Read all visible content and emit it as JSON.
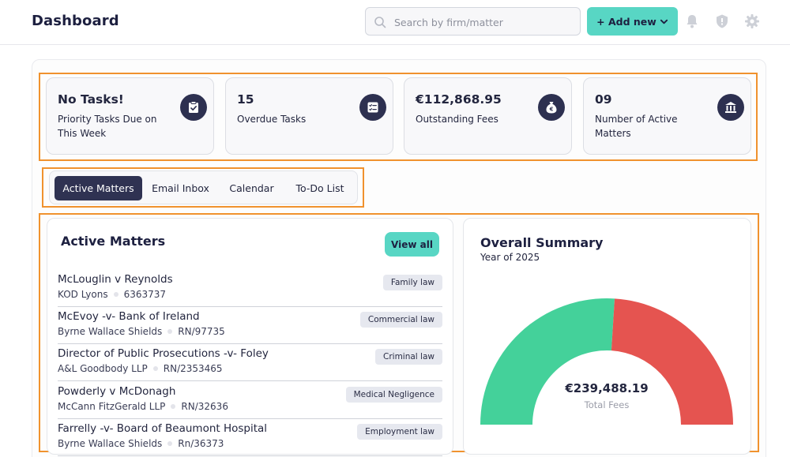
{
  "header": {
    "title": "Dashboard",
    "search_placeholder": "Search by firm/matter",
    "add_new_label": "+ Add new",
    "icons": [
      "search-icon",
      "chevron-down-icon",
      "bell-icon",
      "shield-icon",
      "gear-icon"
    ]
  },
  "stats": [
    {
      "value": "No Tasks!",
      "label": "Priority Tasks Due on This Week",
      "icon": "clipboard-check-icon"
    },
    {
      "value": "15",
      "label": "Overdue Tasks",
      "icon": "checklist-icon"
    },
    {
      "value": "€112,868.95",
      "label": "Outstanding Fees",
      "icon": "money-bag-icon"
    },
    {
      "value": "09",
      "label": "Number of Active Matters",
      "icon": "bank-icon"
    }
  ],
  "tabs": [
    {
      "label": "Active Matters",
      "active": true
    },
    {
      "label": "Email Inbox",
      "active": false
    },
    {
      "label": "Calendar",
      "active": false
    },
    {
      "label": "To-Do List",
      "active": false
    }
  ],
  "active_matters": {
    "title": "Active Matters",
    "view_all_label": "View all",
    "items": [
      {
        "title": "McLouglin v Reynolds",
        "firm": "KOD Lyons",
        "ref": "6363737",
        "tag": "Family law"
      },
      {
        "title": "McEvoy -v- Bank of Ireland",
        "firm": "Byrne Wallace Shields",
        "ref": "RN/97735",
        "tag": "Commercial law"
      },
      {
        "title": "Director of Public Prosecutions -v- Foley",
        "firm": "A&L Goodbody LLP",
        "ref": "RN/2353465",
        "tag": "Criminal law"
      },
      {
        "title": "Powderly v McDonagh",
        "firm": "McCann FitzGerald LLP",
        "ref": "RN/32636",
        "tag": "Medical Negligence"
      },
      {
        "title": "Farrelly -v- Board of Beaumont Hospital",
        "firm": "Byrne Wallace Shields",
        "ref": "Rn/36373",
        "tag": "Employment law"
      }
    ]
  },
  "summary": {
    "title": "Overall Summary",
    "subtitle": "Year of 2025",
    "total_value": "€239,488.19",
    "total_label": "Total Fees",
    "colors": {
      "green": "#44d19a",
      "red": "#e55450"
    }
  },
  "chart_data": {
    "type": "pie",
    "style": "half-donut",
    "segments": [
      {
        "value": 0.52,
        "color": "#44d19a"
      },
      {
        "value": 0.48,
        "color": "#e55450"
      }
    ]
  }
}
